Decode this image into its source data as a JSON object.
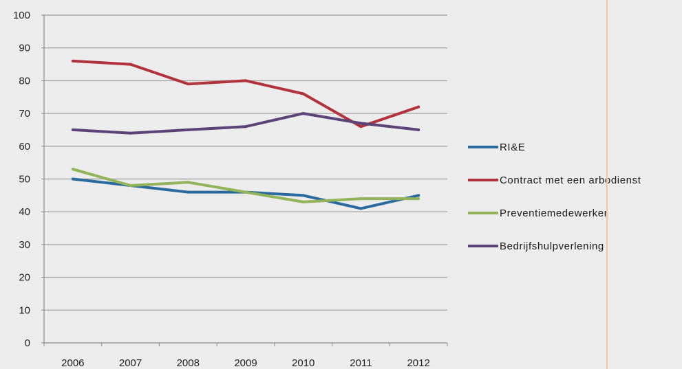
{
  "chart_data": {
    "type": "line",
    "categories": [
      "2006",
      "2007",
      "2008",
      "2009",
      "2010",
      "2011",
      "2012"
    ],
    "ylim": [
      0,
      100
    ],
    "yticks": [
      "0",
      "10",
      "20",
      "30",
      "40",
      "50",
      "60",
      "70",
      "80",
      "90",
      "100"
    ],
    "grid": true,
    "legend_position": "right",
    "series": [
      {
        "name": "RI&E",
        "color": "#2b6a9e",
        "values": [
          50,
          48,
          46,
          46,
          45,
          41,
          45
        ]
      },
      {
        "name": "Contract met een arbodienst",
        "color": "#b0323c",
        "values": [
          86,
          85,
          79,
          80,
          76,
          66,
          72
        ]
      },
      {
        "name": "Preventiemedewerker",
        "color": "#93b35a",
        "values": [
          53,
          48,
          49,
          46,
          43,
          44,
          44
        ]
      },
      {
        "name": "Bedrijfshulpverlening",
        "color": "#5b4378",
        "values": [
          65,
          64,
          65,
          66,
          70,
          67,
          65
        ]
      }
    ]
  }
}
